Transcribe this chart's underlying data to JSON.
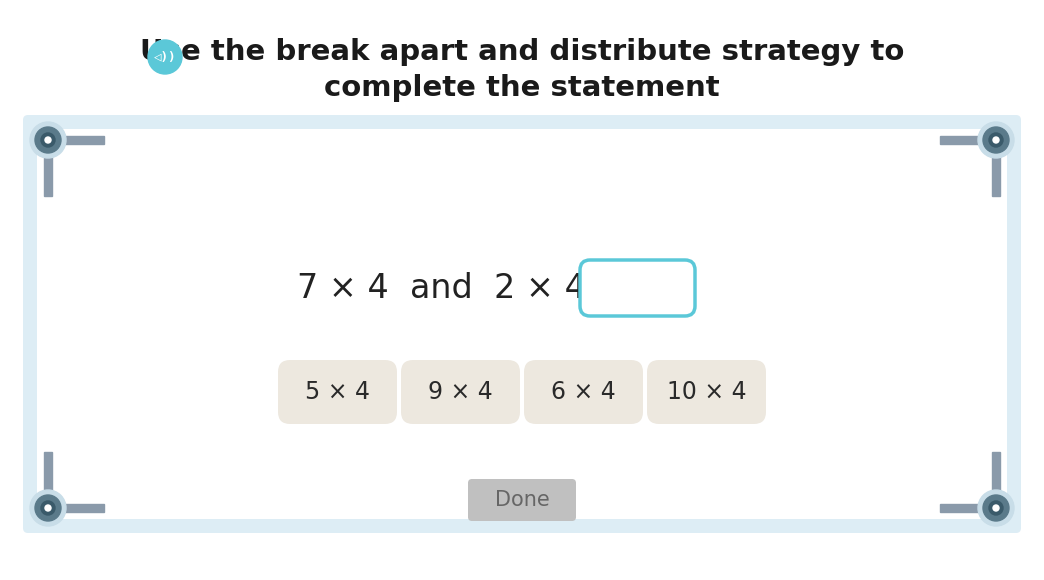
{
  "title_line1": "Use the break apart and distribute strategy to",
  "title_line2": "complete the statement",
  "title_fontsize": 21,
  "title_color": "#1a1a1a",
  "bg_color": "#ffffff",
  "panel_border": "#b8d8e8",
  "panel_fill": "#ddedf5",
  "main_expression": "7 × 4  and  2 × 4  is",
  "answer_box_color": "#5bc8d8",
  "choices": [
    "5 × 4",
    "9 × 4",
    "6 × 4",
    "10 × 4"
  ],
  "choice_bg": "#ede8df",
  "choice_fontsize": 17,
  "done_label": "Done",
  "done_bg": "#c0c0c0",
  "done_fg": "#666666",
  "icon_color": "#5bc8d8",
  "corner_circle_outer": "#c8dde8",
  "corner_circle_inner": "#5a7a8a",
  "corner_bracket_color": "#8a9aaa",
  "corner_inner_hole": "#3a5a6a"
}
